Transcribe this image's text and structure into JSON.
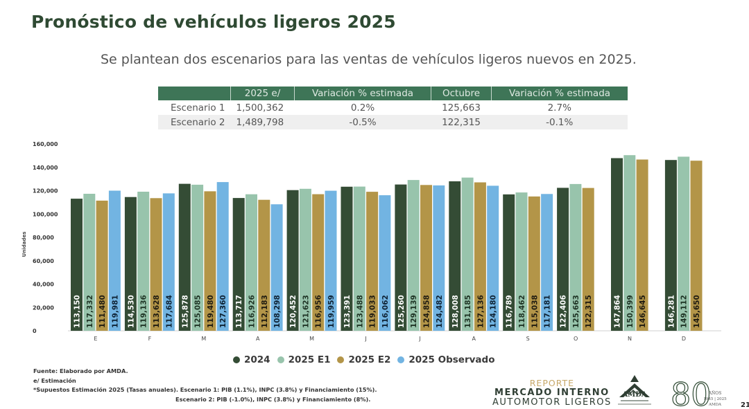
{
  "header": {
    "title": "Pronóstico de vehículos ligeros 2025",
    "subtitle": "Se plantean dos escenarios para las ventas de vehículos ligeros nuevos en 2025."
  },
  "scenario_table": {
    "headers": [
      "",
      "2025 e/",
      "Variación % estimada",
      "Octubre",
      "Variación % estimada"
    ],
    "rows": [
      [
        "Escenario 1",
        "1,500,362",
        "0.2%",
        "125,663",
        "2.7%"
      ],
      [
        "Escenario 2",
        "1,489,798",
        "-0.5%",
        "122,315",
        "-0.1%"
      ]
    ]
  },
  "chart_data": {
    "type": "bar",
    "title": "",
    "xlabel": "",
    "ylabel": "Unidades",
    "ylim": [
      0,
      160000
    ],
    "yticks": [
      0,
      20000,
      40000,
      60000,
      80000,
      100000,
      120000,
      140000,
      160000
    ],
    "ytick_labels": [
      "0",
      "20,000",
      "40,000",
      "60,000",
      "80,000",
      "100,000",
      "120,000",
      "140,000",
      "160,000"
    ],
    "grid": false,
    "legend_position": "bottom-center",
    "categories": [
      "E",
      "F",
      "M",
      "A",
      "M",
      "J",
      "J",
      "A",
      "S",
      "O",
      "N",
      "D"
    ],
    "series": [
      {
        "name": "2024",
        "color": "#344c35",
        "label_color": "#ffffff",
        "values": [
          113150,
          114530,
          125878,
          113717,
          120452,
          123391,
          125260,
          128008,
          116789,
          122406,
          147864,
          146281
        ],
        "labels": [
          "113,150",
          "114,530",
          "125,878",
          "113,717",
          "120,452",
          "123,391",
          "125,260",
          "128,008",
          "116,789",
          "122,406",
          "147,864",
          "146,281"
        ]
      },
      {
        "name": "2025 E1",
        "color": "#98c4ac",
        "label_color": "#1e3324",
        "values": [
          117332,
          119136,
          125085,
          116926,
          121623,
          123488,
          129139,
          131185,
          118462,
          125663,
          150399,
          149112
        ],
        "labels": [
          "117,332",
          "119,136",
          "125,085",
          "116,926",
          "121,623",
          "123,488",
          "129,139",
          "131,185",
          "118,462",
          "125,663",
          "150,399",
          "149,112"
        ]
      },
      {
        "name": "2025 E2",
        "color": "#b39548",
        "label_color": "#1e1a10",
        "values": [
          111480,
          113628,
          119480,
          112183,
          116956,
          119033,
          124858,
          127136,
          115038,
          122315,
          146645,
          145650
        ],
        "labels": [
          "111,480",
          "113,628",
          "119,480",
          "112,183",
          "116,956",
          "119,033",
          "124,858",
          "127,136",
          "115,038",
          "122,315",
          "146,645",
          "145,650"
        ]
      },
      {
        "name": "2025 Observado",
        "color": "#72b4e2",
        "label_color": "#0e2234",
        "values": [
          119981,
          117684,
          127360,
          108298,
          119959,
          116062,
          124482,
          124180,
          117181,
          null,
          null,
          null
        ],
        "labels": [
          "119,981",
          "117,684",
          "127,360",
          "108,298",
          "119,959",
          "116,062",
          "124,482",
          "124,180",
          "117,181",
          null,
          null,
          null
        ]
      }
    ]
  },
  "legend": {
    "items": [
      {
        "label": "2024",
        "color": "#344c35"
      },
      {
        "label": "2025 E1",
        "color": "#98c4ac"
      },
      {
        "label": "2025 E2",
        "color": "#b39548"
      },
      {
        "label": "2025 Observado",
        "color": "#72b4e2"
      }
    ]
  },
  "notes": {
    "source": "Fuente: Elaborado por AMDA.",
    "estimate": "e/ Estimación",
    "assumptions_1": "*Supuestos Estimación 2025 (Tasas anuales). Escenario 1: PIB (1.1%), INPC (3.8%) y Financiamiento (15%).",
    "assumptions_2": "Escenario 2: PIB (-1.0%), INPC (3.8%) y Financiamiento (8%)."
  },
  "branding": {
    "report_line1": "REPORTE",
    "report_line2": "MERCADO INTERNO",
    "report_line3": "AUTOMOTOR LIGEROS",
    "amda_logo_text": "AMDA",
    "anniversary_number": "80",
    "anniversary_text_1": "AÑOS",
    "anniversary_text_2": "1945 | 2025",
    "anniversary_text_3": "AMDA",
    "page_number": "21"
  }
}
